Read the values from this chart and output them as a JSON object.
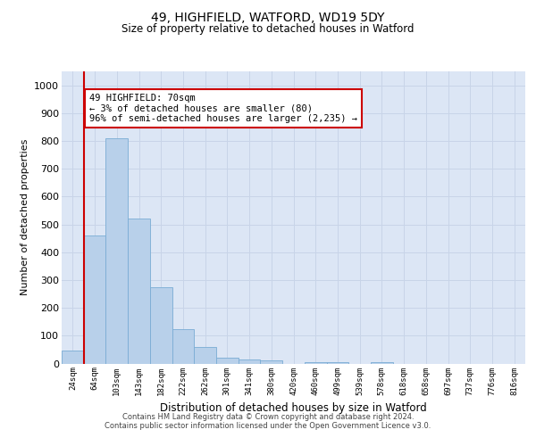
{
  "title1": "49, HIGHFIELD, WATFORD, WD19 5DY",
  "title2": "Size of property relative to detached houses in Watford",
  "xlabel": "Distribution of detached houses by size in Watford",
  "ylabel": "Number of detached properties",
  "categories": [
    "24sqm",
    "64sqm",
    "103sqm",
    "143sqm",
    "182sqm",
    "222sqm",
    "262sqm",
    "301sqm",
    "341sqm",
    "380sqm",
    "420sqm",
    "460sqm",
    "499sqm",
    "539sqm",
    "578sqm",
    "618sqm",
    "658sqm",
    "697sqm",
    "737sqm",
    "776sqm",
    "816sqm"
  ],
  "values": [
    45,
    460,
    810,
    520,
    275,
    122,
    60,
    20,
    15,
    10,
    0,
    5,
    5,
    0,
    5,
    0,
    0,
    0,
    0,
    0,
    0
  ],
  "bar_color": "#b8d0ea",
  "bar_edge_color": "#7aacd4",
  "vline_color": "#cc0000",
  "annotation_text": "49 HIGHFIELD: 70sqm\n← 3% of detached houses are smaller (80)\n96% of semi-detached houses are larger (2,235) →",
  "annotation_box_color": "#ffffff",
  "annotation_box_edge": "#cc0000",
  "grid_color": "#c8d4e8",
  "background_color": "#dce6f5",
  "ylim": [
    0,
    1050
  ],
  "yticks": [
    0,
    100,
    200,
    300,
    400,
    500,
    600,
    700,
    800,
    900,
    1000
  ],
  "footer": "Contains HM Land Registry data © Crown copyright and database right 2024.\nContains public sector information licensed under the Open Government Licence v3.0."
}
